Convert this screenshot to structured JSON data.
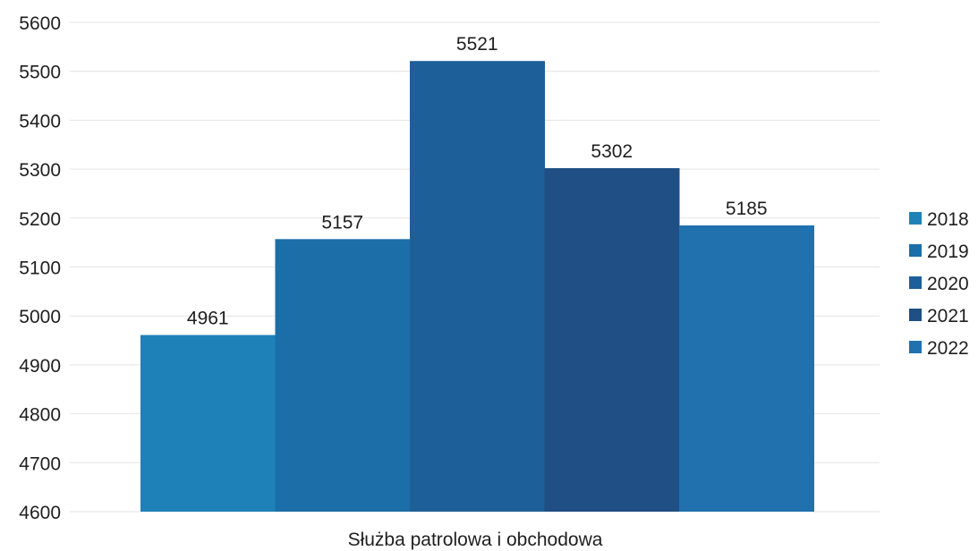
{
  "chart_data": {
    "type": "bar",
    "categories": [
      "Służba patrolowa i obchodowa"
    ],
    "series": [
      {
        "name": "2018",
        "values": [
          4961
        ],
        "color": "#1e82b8"
      },
      {
        "name": "2019",
        "values": [
          5157
        ],
        "color": "#1c6ea8"
      },
      {
        "name": "2020",
        "values": [
          5521
        ],
        "color": "#1d5f98"
      },
      {
        "name": "2021",
        "values": [
          5302
        ],
        "color": "#1f4f85"
      },
      {
        "name": "2022",
        "values": [
          5185
        ],
        "color": "#2171af"
      }
    ],
    "title": "",
    "xlabel": "",
    "ylabel": "",
    "ylim": [
      4600,
      5600
    ],
    "yticks": [
      4600,
      4700,
      4800,
      4900,
      5000,
      5100,
      5200,
      5300,
      5400,
      5500,
      5600
    ],
    "grid": true,
    "legend": "right",
    "data_labels": true
  }
}
